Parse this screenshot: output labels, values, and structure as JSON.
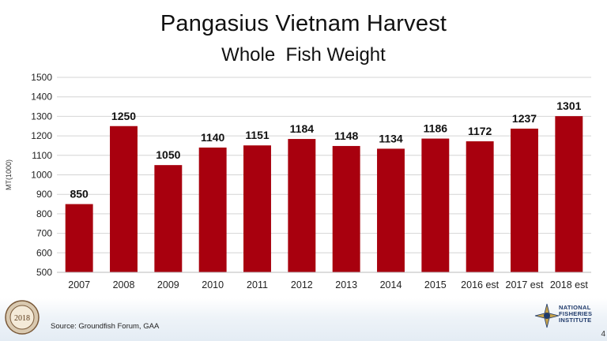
{
  "slide": {
    "title": "Pangasius Vietnam Harvest",
    "subtitle": "Whole  Fish Weight",
    "source": "Source: Groundfish Forum, GAA",
    "slide_number": "4",
    "seal_text": "2018",
    "logo_text": [
      "NATIONAL",
      "FISHERIES",
      "INSTITUTE"
    ]
  },
  "chart_data": {
    "type": "bar",
    "categories": [
      "2007",
      "2008",
      "2009",
      "2010",
      "2011",
      "2012",
      "2013",
      "2014",
      "2015",
      "2016 est",
      "2017 est",
      "2018 est"
    ],
    "values": [
      850,
      1250,
      1050,
      1140,
      1151,
      1184,
      1148,
      1134,
      1186,
      1172,
      1237,
      1301
    ],
    "ylabel": "MT(1000)",
    "ylim": [
      500,
      1500
    ],
    "yticks": [
      500,
      600,
      700,
      800,
      900,
      1000,
      1100,
      1200,
      1300,
      1400,
      1500
    ],
    "bar_color": "#a8000e",
    "gridlines": true,
    "data_labels": true
  }
}
